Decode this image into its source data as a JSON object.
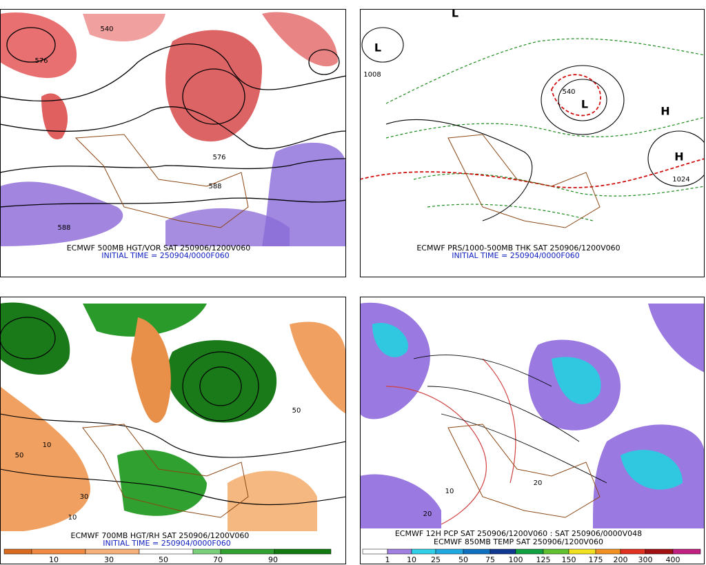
{
  "panels": [
    {
      "lines": [
        "ECMWF 500MB HGT/VOR SAT 250906/1200V060",
        "INITIAL TIME = 250904/0000F060"
      ],
      "map_labels": [
        "540",
        "576",
        "588",
        "576",
        "588"
      ]
    },
    {
      "lines": [
        "ECMWF PRS/1000-500MB THK SAT 250906/1200V060",
        "INITIAL TIME = 250904/0000F060"
      ],
      "map_labels": [
        "L",
        "L",
        "L",
        "H",
        "H",
        "1024",
        "1008",
        "540"
      ]
    },
    {
      "lines": [
        "ECMWF 700MB HGT/RH SAT 250906/1200V060",
        "INITIAL TIME = 250904/0000F060"
      ],
      "map_labels": [
        "10",
        "50",
        "30",
        "50",
        "10"
      ],
      "colorbar": [
        "10",
        "30",
        "50",
        "70",
        "90"
      ]
    },
    {
      "lines": [
        "ECMWF 12H PCP SAT 250906/1200V060 : SAT 250906/0000V048",
        "ECMWF 850MB TEMP SAT 250906/1200V060"
      ],
      "map_labels": [
        "20",
        "10",
        "20"
      ],
      "colorbar": [
        "1",
        "10",
        "25",
        "50",
        "75",
        "100",
        "125",
        "150",
        "175",
        "200",
        "300",
        "400"
      ]
    }
  ]
}
